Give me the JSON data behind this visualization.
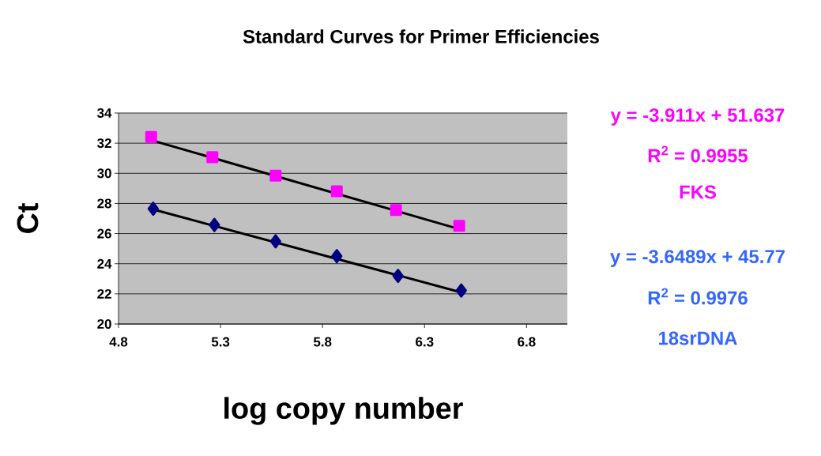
{
  "chart_data": {
    "type": "scatter",
    "title": "Standard Curves for Primer Efficiencies",
    "xlabel": "log copy number",
    "ylabel": "Ct",
    "xlim": [
      4.8,
      7.0
    ],
    "xticks": [
      4.8,
      5.3,
      5.8,
      6.3,
      6.8
    ],
    "ylim": [
      20,
      34
    ],
    "yticks": [
      20,
      22,
      24,
      26,
      28,
      30,
      32,
      34
    ],
    "grid": "y",
    "legend": "right",
    "series": [
      {
        "name": "FKS",
        "marker": "square",
        "color": "#ff00ff",
        "x": [
          4.96,
          5.26,
          5.57,
          5.87,
          6.16,
          6.47
        ],
        "values": [
          32.42,
          31.07,
          29.85,
          28.81,
          27.57,
          26.51
        ]
      },
      {
        "name": "18srDNA",
        "marker": "diamond",
        "color": "#000080",
        "x": [
          4.97,
          5.27,
          5.57,
          5.87,
          6.17,
          6.48
        ],
        "values": [
          27.65,
          26.57,
          25.49,
          24.5,
          23.19,
          22.22
        ]
      },
      {
        "type": "line",
        "marker": "none",
        "line_style": "solid",
        "color": "#000000",
        "x": [
          4.96,
          6.47
        ],
        "values": [
          32.2,
          26.3
        ]
      },
      {
        "type": "line",
        "marker": "none",
        "line_style": "solid",
        "color": "#000000",
        "x": [
          4.97,
          6.48
        ],
        "values": [
          27.6,
          22.1
        ]
      }
    ],
    "annotations": [
      "y = -3.911x + 51.637",
      "R$^{2}$ = 0.9955",
      "y = -3.6489x + 45.77",
      "R$^{2}$ = 0.9976"
    ]
  }
}
